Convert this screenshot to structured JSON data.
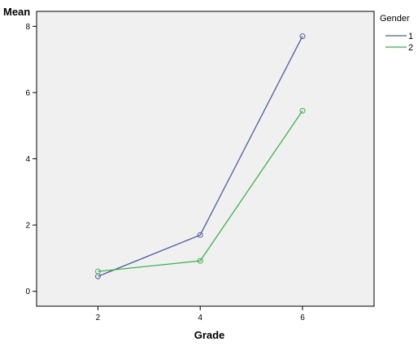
{
  "chart_data": {
    "type": "line",
    "xlabel": "Grade",
    "ylabel": "Mean",
    "x": [
      2,
      4,
      6
    ],
    "xlim": [
      0.8,
      7.4
    ],
    "ylim": [
      -0.45,
      8.45
    ],
    "xticks": [
      2,
      4,
      6
    ],
    "yticks": [
      0,
      2,
      4,
      6,
      8
    ],
    "grid": false,
    "plot_background": "#f0f0f0",
    "legend": {
      "title": "Gender",
      "placement": "top-right outside"
    },
    "series": [
      {
        "name": "1",
        "values": [
          0.45,
          1.7,
          7.7
        ],
        "color": "#4e5fa1",
        "marker": "circle"
      },
      {
        "name": "2",
        "values": [
          0.6,
          0.92,
          5.45
        ],
        "color": "#3cb44b",
        "marker": "circle"
      }
    ]
  }
}
